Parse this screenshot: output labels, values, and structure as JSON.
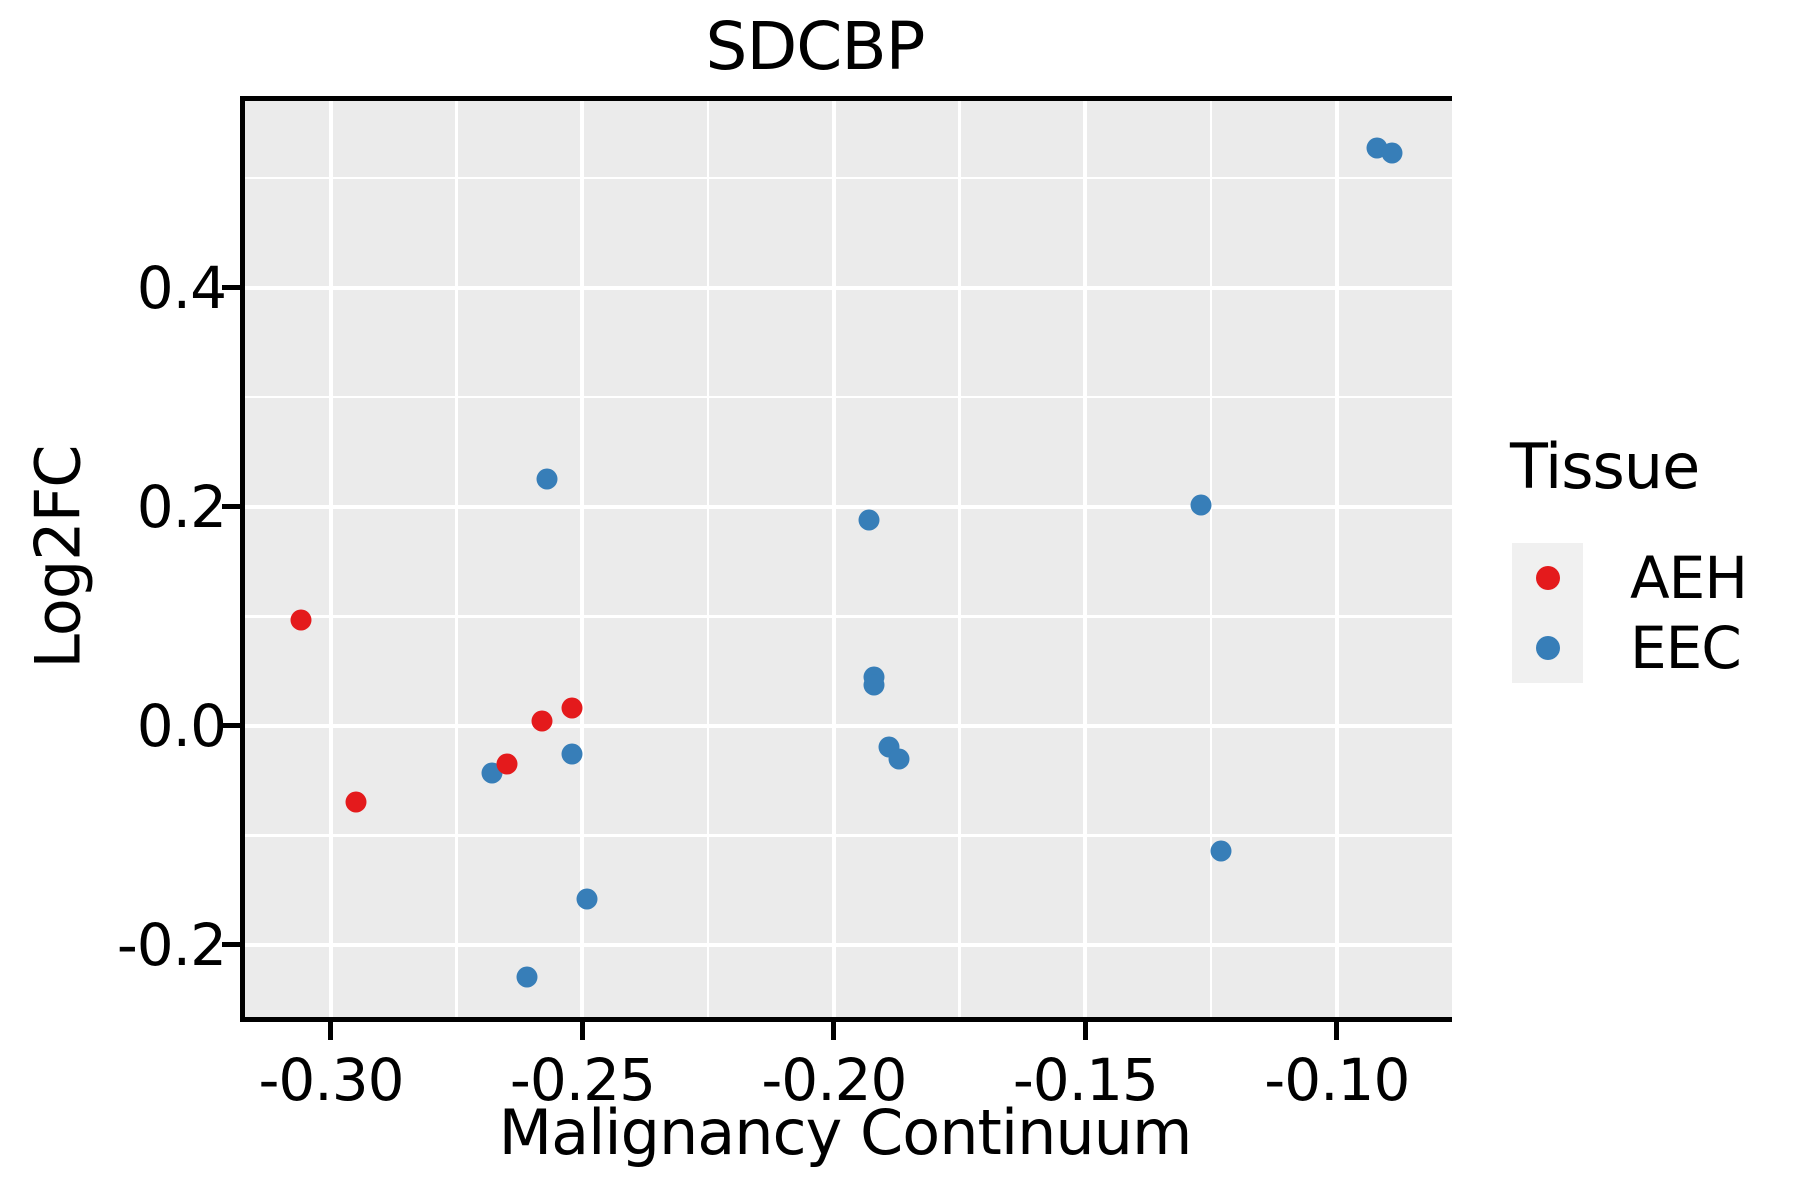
{
  "title": "SDCBP",
  "axes": {
    "x": {
      "label": "Malignancy Continuum",
      "tick_values": [
        -0.3,
        -0.25,
        -0.2,
        -0.15,
        -0.1
      ],
      "tick_labels": [
        "-0.30",
        "-0.25",
        "-0.20",
        "-0.15",
        "-0.10"
      ],
      "minor_values": [
        -0.275,
        -0.225,
        -0.175,
        -0.125
      ],
      "range": [
        -0.3171,
        -0.0771
      ]
    },
    "y": {
      "label": "Log2FC",
      "tick_values": [
        0.4,
        0.2,
        0.0,
        -0.2
      ],
      "tick_labels": [
        "0.4",
        "0.2",
        "0.0",
        "-0.2"
      ],
      "minor_values": [
        0.5,
        0.3,
        0.1,
        -0.1
      ],
      "range": [
        -0.2659,
        0.5705
      ]
    }
  },
  "legend": {
    "title": "Tissue",
    "entries": [
      {
        "label": "AEH",
        "color": "#E41A1C"
      },
      {
        "label": "EEC",
        "color": "#377EB8"
      }
    ]
  },
  "colors": {
    "panel_background": "#EBEBEB",
    "gridline": "#FFFFFF",
    "axis_line": "#000000",
    "aeh_red": "#E41A1C",
    "eec_blue": "#377EB8",
    "legend_key_background": "#F0F0F0"
  },
  "chart_data": {
    "type": "scatter",
    "title": "SDCBP",
    "xlabel": "Malignancy Continuum",
    "ylabel": "Log2FC",
    "xlim": [
      -0.3171,
      -0.0771
    ],
    "ylim": [
      -0.2659,
      0.5705
    ],
    "grid": true,
    "legend_position": "right",
    "legend_title": "Tissue",
    "series": [
      {
        "name": "AEH",
        "color": "#E41A1C",
        "points": [
          [
            -0.306,
            0.097
          ],
          [
            -0.295,
            -0.07
          ],
          [
            -0.265,
            -0.035
          ],
          [
            -0.258,
            0.004
          ],
          [
            -0.252,
            0.016
          ]
        ]
      },
      {
        "name": "EEC",
        "color": "#377EB8",
        "points": [
          [
            -0.268,
            -0.043
          ],
          [
            -0.261,
            -0.229
          ],
          [
            -0.257,
            0.225
          ],
          [
            -0.252,
            -0.026
          ],
          [
            -0.249,
            -0.158
          ],
          [
            -0.193,
            0.188
          ],
          [
            -0.192,
            0.045
          ],
          [
            -0.192,
            0.037
          ],
          [
            -0.189,
            -0.019
          ],
          [
            -0.187,
            -0.03
          ],
          [
            -0.127,
            0.202
          ],
          [
            -0.123,
            -0.114
          ],
          [
            -0.092,
            0.528
          ],
          [
            -0.089,
            0.523
          ]
        ]
      }
    ]
  }
}
